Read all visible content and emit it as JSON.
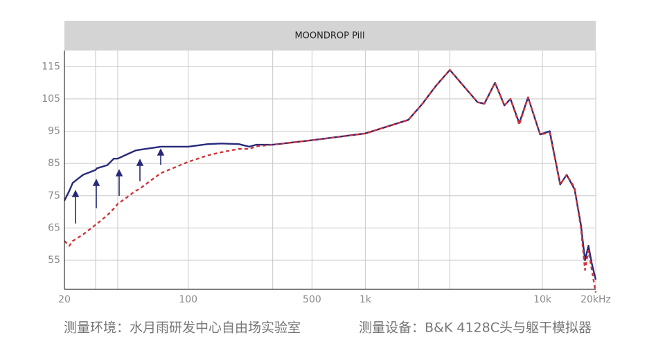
{
  "chart_data": {
    "type": "line",
    "title": "MOONDROP  Pill",
    "xscale": "log",
    "x": [
      20,
      21.3,
      22.3,
      25.5,
      30,
      30.5,
      35,
      38,
      40,
      43.8,
      50.4,
      52.6,
      70,
      100,
      129,
      154,
      193,
      221,
      242,
      300,
      500,
      1000,
      1750,
      2100,
      2500,
      3000,
      3400,
      4300,
      4700,
      5400,
      6100,
      6600,
      7400,
      8300,
      9700,
      11000,
      12600,
      13700,
      15200,
      16500,
      17400,
      18200,
      19000,
      20000
    ],
    "series": [
      {
        "color": "#27297a",
        "style": "solid",
        "values": [
          73.5,
          76.5,
          79,
          81.5,
          83,
          83.5,
          84.5,
          86.5,
          86.5,
          87.5,
          89,
          89.2,
          90.2,
          90.2,
          91,
          91.2,
          91,
          90.2,
          90.8,
          90.8,
          92.2,
          94.3,
          98.5,
          103.5,
          109,
          114,
          110.5,
          104,
          103.5,
          110,
          103,
          105,
          97.5,
          105.5,
          94,
          95,
          78.5,
          81.5,
          77,
          66,
          55,
          59.5,
          54,
          49
        ]
      },
      {
        "color": "#d0343a",
        "style": "dashed",
        "values": [
          61,
          59.5,
          61,
          63,
          66,
          66.3,
          69,
          71,
          72.5,
          74,
          76.5,
          77,
          82,
          85.5,
          87.5,
          88.5,
          89.5,
          89.5,
          90.3,
          90.8,
          92.2,
          94.3,
          98.5,
          103.5,
          109,
          114,
          110.5,
          104,
          103.5,
          110,
          103,
          105,
          97,
          105.5,
          94,
          94.5,
          78.5,
          81.5,
          77.5,
          65,
          52,
          58,
          52,
          45
        ]
      }
    ],
    "xlim": [
      20,
      20000
    ],
    "xticks": [
      20,
      100,
      500,
      {
        "value": 1000,
        "label": "1k"
      },
      {
        "value": 10000,
        "label": "10k"
      },
      {
        "value": 20000,
        "label": "20kHz"
      }
    ],
    "xgrid_minor": [
      30,
      40,
      300,
      2000,
      3000
    ],
    "ylim": [
      46,
      120
    ],
    "yticks": [
      55,
      65,
      75,
      85,
      95,
      105,
      115
    ],
    "grid": true
  },
  "footer": {
    "environment": "测量环境：水月雨研发中心自由场实验室",
    "equipment": "测量设备：B&K 4128C头与躯干模拟器"
  }
}
